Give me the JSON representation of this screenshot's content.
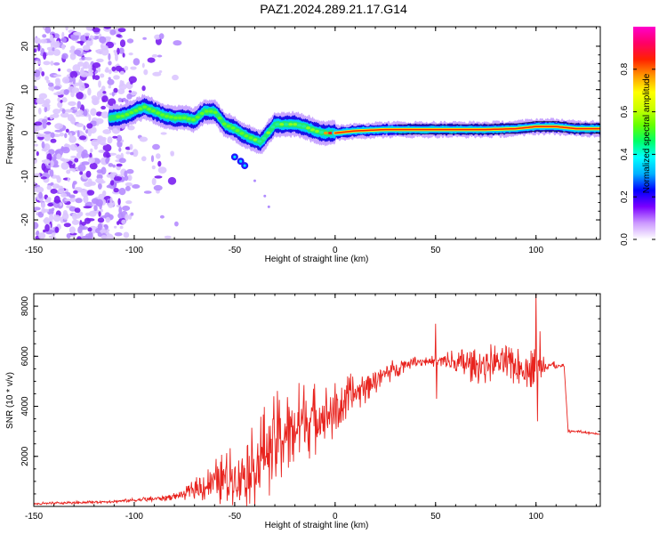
{
  "title": "PAZ1.2024.289.21.17.G14",
  "chart_data": [
    {
      "type": "heatmap",
      "xlabel": "Height of straight line (km)",
      "ylabel": "Frequency (Hz)",
      "xlim": [
        -150,
        132
      ],
      "ylim": [
        -24.5,
        24.5
      ],
      "xticks": [
        -150,
        -100,
        -50,
        0,
        50,
        100
      ],
      "yticks": [
        -20,
        -10,
        0,
        10,
        20
      ],
      "colorbar": {
        "label": "Normalized spectral amplitude",
        "range": [
          0,
          1
        ],
        "ticks": [
          0.0,
          0.2,
          0.4,
          0.6,
          0.8
        ],
        "colors": [
          "#ffffff",
          "#cc99ff",
          "#7a00ff",
          "#0000ff",
          "#00b0ff",
          "#00ffff",
          "#00ff66",
          "#66ff00",
          "#ccff00",
          "#ffff00",
          "#ff9900",
          "#ff2200",
          "#ff0066",
          "#ff00cc"
        ]
      },
      "ridge": {
        "x": [
          -112,
          -105,
          -100,
          -95,
          -90,
          -85,
          -80,
          -75,
          -70,
          -65,
          -60,
          -55,
          -50,
          -45,
          -40,
          -37,
          -35,
          -30,
          -25,
          -20,
          -15,
          -10,
          -5,
          0,
          10,
          25,
          50,
          75,
          90,
          100,
          110,
          120,
          132
        ],
        "y": [
          3.5,
          4.0,
          5.0,
          6.0,
          5.0,
          4.0,
          3.5,
          3.5,
          3.0,
          5.0,
          5.0,
          2.0,
          1.0,
          -0.5,
          -1.5,
          -2.0,
          -1.0,
          2.0,
          2.0,
          2.0,
          1.5,
          0.5,
          0.0,
          0.0,
          0.5,
          0.8,
          0.8,
          0.8,
          1.0,
          1.5,
          1.5,
          1.0,
          1.0
        ]
      },
      "side_branch": {
        "x": [
          -50,
          -47,
          -45,
          -40,
          -35,
          -33
        ],
        "y": [
          -5.5,
          -6.5,
          -7.5,
          -11.0,
          -14.5,
          -17.0
        ]
      }
    },
    {
      "type": "line",
      "xlabel": "Height of straight line (km)",
      "ylabel": "SNR (10 * v/v)",
      "xlim": [
        -150,
        132
      ],
      "ylim": [
        0,
        8500
      ],
      "xticks": [
        -150,
        -100,
        -50,
        0,
        50,
        100
      ],
      "yticks": [
        2000,
        4000,
        6000,
        8000
      ],
      "color": "#e8231e",
      "series": [
        {
          "x": [
            -150,
            -130,
            -110,
            -90,
            -80,
            -75,
            -70,
            -65,
            -60,
            -55,
            -50,
            -45,
            -40,
            -35,
            -30,
            -25,
            -20,
            -15,
            -10,
            -5,
            0,
            5,
            10,
            15,
            20,
            25,
            30,
            35,
            40,
            45,
            50,
            55,
            60,
            65,
            70,
            75,
            80,
            85,
            90,
            95,
            100,
            105,
            110,
            114,
            116,
            120,
            125,
            132
          ],
          "y": [
            100,
            150,
            200,
            300,
            400,
            500,
            700,
            800,
            1000,
            1100,
            1200,
            1400,
            1600,
            2200,
            2600,
            2900,
            3200,
            3400,
            3500,
            3700,
            3800,
            4200,
            4500,
            4800,
            5100,
            5300,
            5500,
            5700,
            5800,
            5800,
            5800,
            5800,
            5700,
            5700,
            5600,
            5700,
            5800,
            5700,
            5600,
            5500,
            5600,
            5700,
            5600,
            5600,
            3000,
            3000,
            2950,
            2900
          ],
          "noise": [
            60,
            60,
            60,
            120,
            150,
            250,
            400,
            700,
            900,
            1100,
            1300,
            1500,
            1700,
            1900,
            2000,
            1900,
            1800,
            1700,
            1500,
            1300,
            1200,
            1000,
            900,
            700,
            600,
            500,
            400,
            300,
            200,
            200,
            250,
            500,
            600,
            700,
            700,
            800,
            800,
            800,
            800,
            800,
            800,
            500,
            100,
            100,
            60,
            60,
            60,
            60
          ]
        }
      ],
      "spikes": [
        {
          "x": 50,
          "y": 7300
        },
        {
          "x": 50.5,
          "y": 4300
        },
        {
          "x": 100,
          "y": 8500
        },
        {
          "x": 100.8,
          "y": 3400
        },
        {
          "x": 102,
          "y": 7000
        }
      ]
    }
  ]
}
